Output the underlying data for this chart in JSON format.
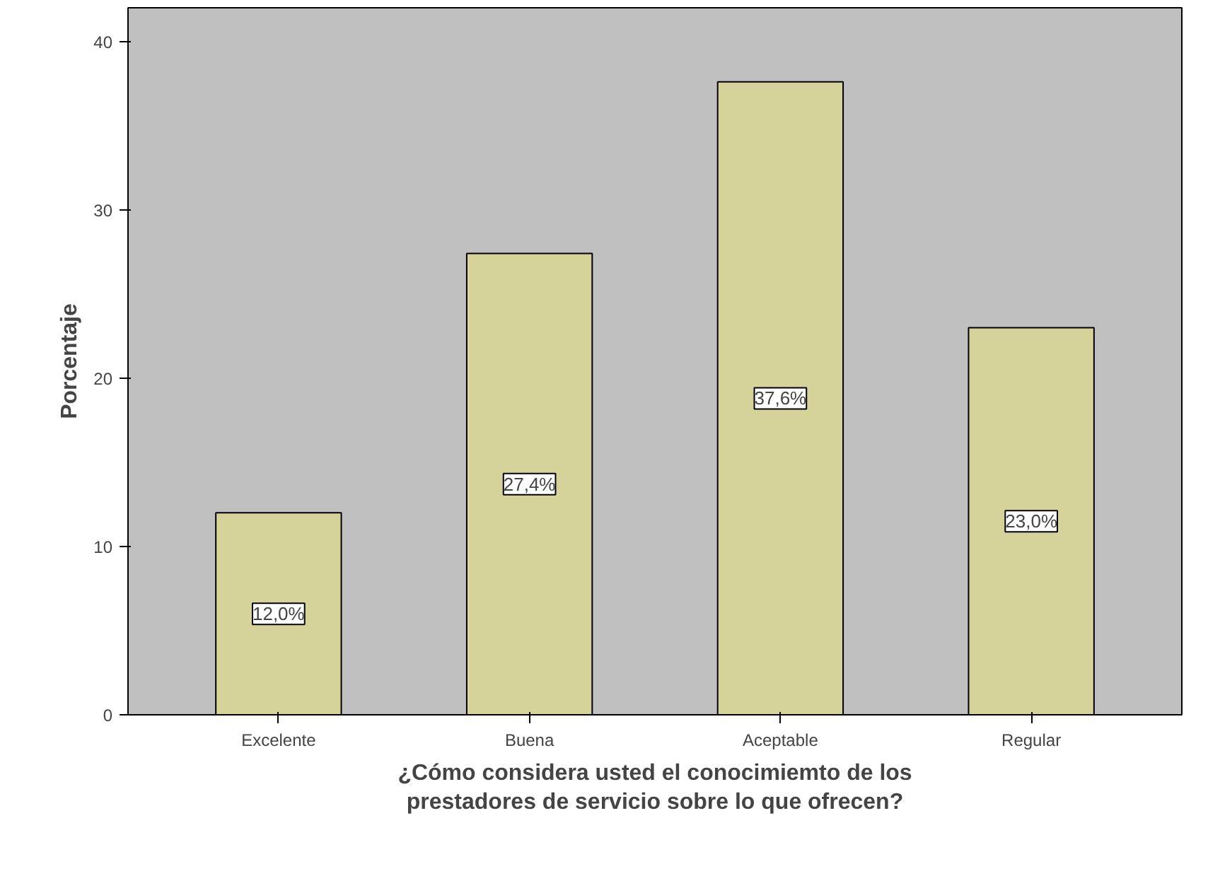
{
  "chart_data": {
    "type": "bar",
    "xlabel": "¿Cómo considera usted el conocimiemto de los\nprestadores de servicio sobre lo que ofrecen?",
    "ylabel": "Porcentaje",
    "categories": [
      "Excelente",
      "Buena",
      "Aceptable",
      "Regular"
    ],
    "values": [
      12.0,
      27.4,
      37.6,
      23.0
    ],
    "value_labels": [
      "12,0%",
      "27,4%",
      "37,6%",
      "23,0%"
    ],
    "color": "#d6d39a",
    "ylim": [
      0,
      42
    ],
    "yticks": [
      0,
      10,
      20,
      30,
      40
    ],
    "grid": false
  }
}
